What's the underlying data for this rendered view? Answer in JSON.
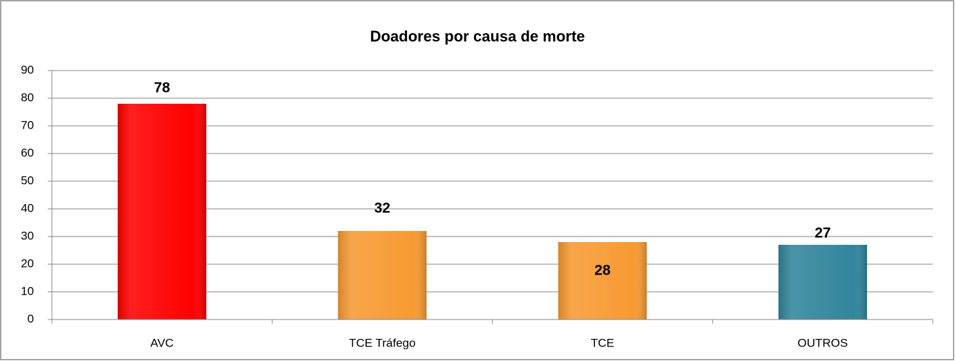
{
  "chart_data": {
    "type": "bar",
    "title": "Doadores por causa de morte",
    "categories": [
      "AVC",
      "TCE Tráfego",
      "TCE",
      "OUTROS"
    ],
    "values": [
      78,
      32,
      28,
      27
    ],
    "colors": [
      "#ff0000",
      "#f79a32",
      "#f79a32",
      "#31859c"
    ],
    "ylim": [
      0,
      90
    ],
    "yticks": [
      0,
      10,
      20,
      30,
      40,
      50,
      60,
      70,
      80,
      90
    ],
    "grid": true
  }
}
